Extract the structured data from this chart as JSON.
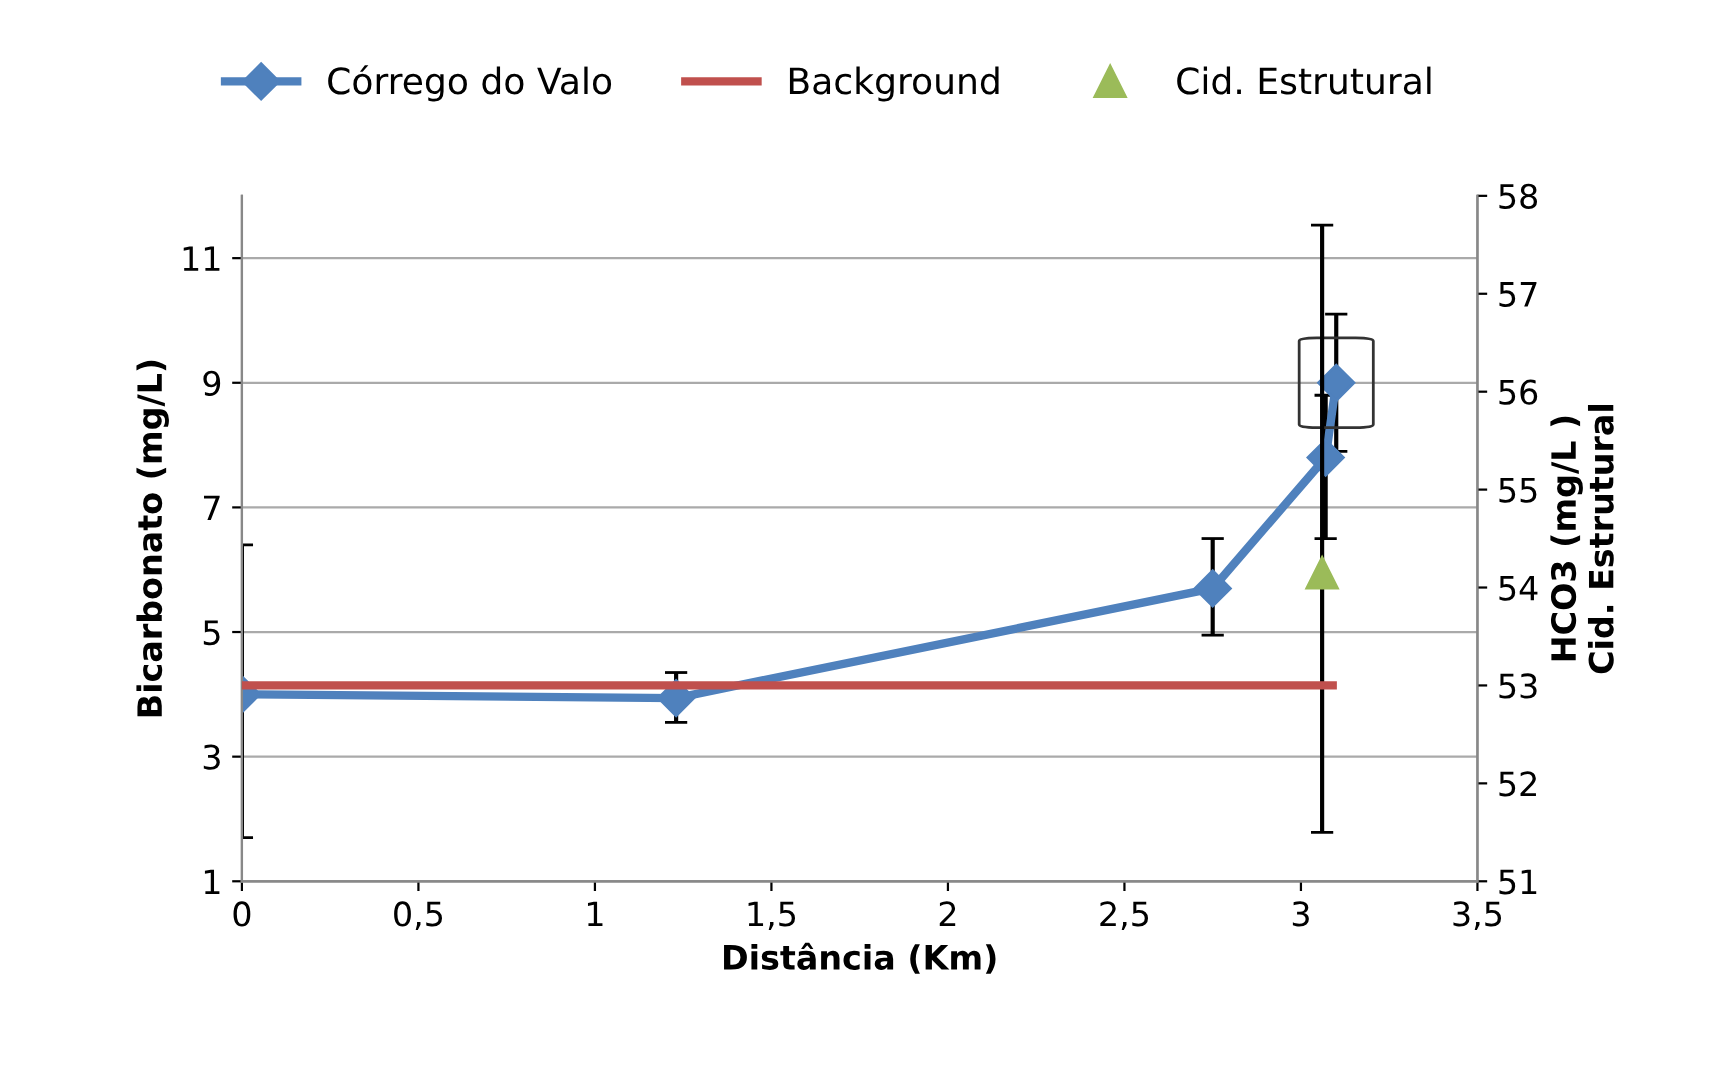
{
  "chart_data": {
    "type": "line",
    "xlabel": "Distância (Km)",
    "ylabel": "Bicarbonato (mg/L)",
    "y2label": "HCO3 (mg/L )\nCid. Estrutural",
    "xlim": [
      0,
      3.5
    ],
    "xticks": [
      0,
      {
        "value": 0.5,
        "label": "0,5"
      },
      1,
      {
        "value": 1.5,
        "label": "1,5"
      },
      2,
      {
        "value": 2.5,
        "label": "2,5"
      },
      3,
      {
        "value": 3.5,
        "label": "3,5"
      }
    ],
    "ylim": [
      1,
      12
    ],
    "yticks": [
      1,
      3,
      5,
      7,
      9,
      11
    ],
    "y2lim": [
      51,
      58
    ],
    "y2ticks": [
      51,
      52,
      53,
      54,
      55,
      56,
      57,
      58
    ],
    "grid": "y",
    "legend": "top",
    "series": [
      {
        "name": "Córrego do Valo",
        "color": "#4f81bd",
        "marker": "diamond",
        "x": [
          0,
          1.23,
          2.75,
          3.07,
          3.1
        ],
        "values": [
          4.0,
          3.94,
          5.7,
          7.8,
          9.0
        ],
        "errors": [
          [
            1.7,
            6.4
          ],
          [
            3.55,
            4.35
          ],
          [
            4.95,
            6.5
          ],
          [
            6.5,
            8.8
          ],
          [
            7.9,
            10.1
          ]
        ]
      },
      {
        "name": "Background",
        "type": "line",
        "color": "#c0504d",
        "marker": "none",
        "axis": "y2",
        "x": [
          0,
          3.09
        ],
        "values": [
          53,
          53
        ]
      },
      {
        "name": "Cid. Estrutural",
        "type": "scatter",
        "color": "#9bbb59",
        "marker": "triangle",
        "axis": "y2",
        "x": [
          3.06
        ],
        "values": [
          54.15
        ],
        "errors": [
          [
            51.5,
            57.7
          ]
        ]
      }
    ]
  }
}
